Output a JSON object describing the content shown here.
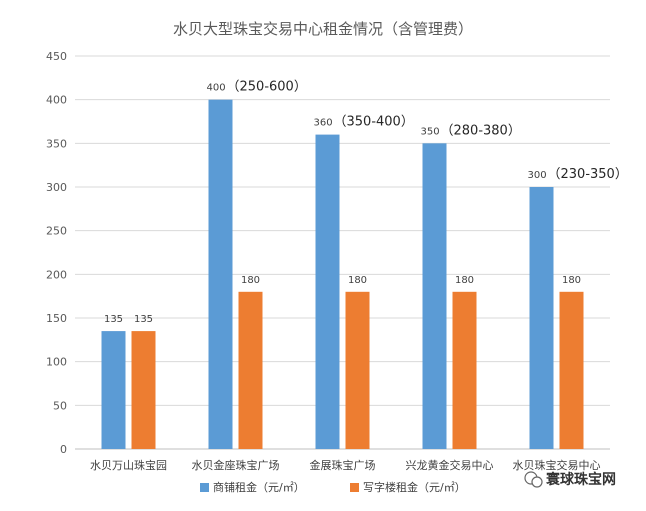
{
  "chart_data": {
    "type": "bar",
    "title": "水贝大型珠宝交易中心租金情况（含管理费）",
    "categories": [
      "水贝万山珠宝园",
      "水贝金座珠宝广场",
      "金展珠宝广场",
      "兴龙黄金交易中心",
      "水贝珠宝交易中心"
    ],
    "series": [
      {
        "name": "商铺租金（元/㎡）",
        "color": "#5b9bd5",
        "values": [
          135,
          400,
          360,
          350,
          300
        ],
        "labels": [
          "135",
          "400",
          "360",
          "350",
          "300"
        ],
        "ranges": [
          "",
          "（250-600）",
          "（350-400）",
          "（280-380）",
          "（230-350）"
        ]
      },
      {
        "name": "写字楼租金（元/㎡）",
        "color": "#ed7d31",
        "values": [
          135,
          180,
          180,
          180,
          180
        ],
        "labels": [
          "135",
          "180",
          "180",
          "180",
          "180"
        ]
      }
    ],
    "ylim": [
      0,
      450
    ],
    "yticks": [
      "0",
      "50",
      "100",
      "150",
      "200",
      "250",
      "300",
      "350",
      "400",
      "450"
    ],
    "grid": true,
    "legend": "bottom"
  },
  "watermark": "寰球珠宝网"
}
